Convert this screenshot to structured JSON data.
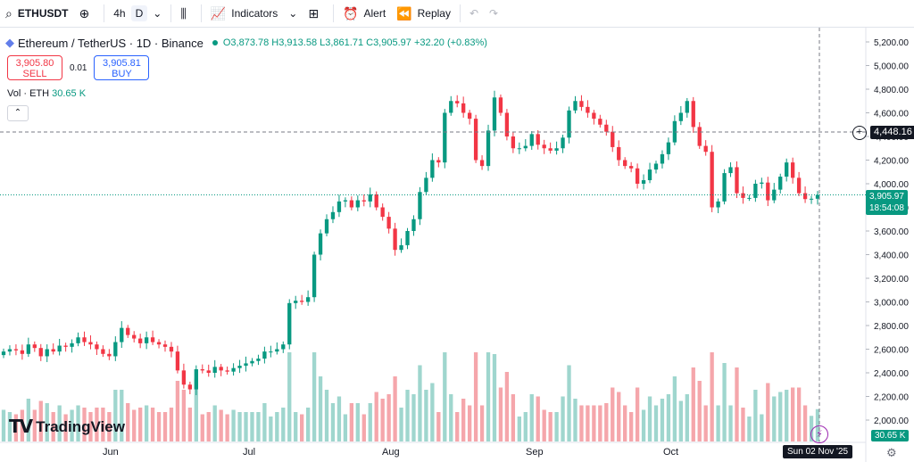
{
  "toolbar": {
    "symbol": "ETHUSDT",
    "interval_4h": "4h",
    "interval_d": "D",
    "indicators_label": "Indicators",
    "alert_label": "Alert",
    "replay_label": "Replay"
  },
  "legend": {
    "title": "Ethereum / TetherUS · 1D · Binance",
    "open": "O3,873.78",
    "high": "H3,913.58",
    "low": "L3,861.71",
    "close": "C3,905.97",
    "change": "+32.20 (+0.83%)"
  },
  "trade": {
    "sell_price": "3,905.80",
    "sell_label": "SELL",
    "spread": "0.01",
    "buy_price": "3,905.81",
    "buy_label": "BUY"
  },
  "volume": {
    "label": "Vol · ETH",
    "value": "30.65 K"
  },
  "logo": "TradingView",
  "crosshair": {
    "price": "4,448.16",
    "date": "Sun 02 Nov '25"
  },
  "last": {
    "price": "3,905.97",
    "countdown": "18:54:08",
    "volume_tag": "30.65 K"
  },
  "colors": {
    "up": "#089981",
    "down": "#f23645",
    "vol_up": "#9fd6ce",
    "vol_down": "#f5a6ab"
  },
  "chart_data": {
    "type": "candlestick",
    "title": "Ethereum / TetherUS · 1D · Binance",
    "x_labels": [
      "Jun",
      "Jul",
      "Aug",
      "Sep",
      "Oct"
    ],
    "y_ticks": [
      "5,200.00",
      "5,000.00",
      "4,800.00",
      "4,600.00",
      "4,400.00",
      "4,200.00",
      "4,000.00",
      "3,800.00",
      "3,600.00",
      "3,400.00",
      "3,200.00",
      "3,000.00",
      "2,800.00",
      "2,600.00",
      "2,400.00",
      "2,200.00",
      "2,000.00"
    ],
    "ylim": [
      1850,
      5300
    ],
    "close": [
      2580,
      2600,
      2590,
      2560,
      2640,
      2610,
      2540,
      2600,
      2580,
      2630,
      2620,
      2650,
      2700,
      2660,
      2640,
      2600,
      2560,
      2540,
      2660,
      2780,
      2720,
      2690,
      2650,
      2700,
      2660,
      2640,
      2620,
      2580,
      2420,
      2300,
      2260,
      2430,
      2420,
      2400,
      2450,
      2420,
      2410,
      2440,
      2460,
      2480,
      2500,
      2520,
      2580,
      2580,
      2600,
      2640,
      2990,
      3010,
      3000,
      3040,
      3400,
      3580,
      3700,
      3760,
      3850,
      3860,
      3800,
      3860,
      3850,
      3910,
      3800,
      3720,
      3620,
      3440,
      3480,
      3600,
      3700,
      3930,
      4050,
      4200,
      4180,
      4600,
      4700,
      4680,
      4600,
      4550,
      4200,
      4150,
      4450,
      4730,
      4600,
      4400,
      4300,
      4300,
      4320,
      4420,
      4330,
      4300,
      4280,
      4300,
      4390,
      4620,
      4700,
      4650,
      4600,
      4550,
      4500,
      4440,
      4310,
      4200,
      4150,
      4130,
      4000,
      4030,
      4120,
      4170,
      4250,
      4350,
      4530,
      4600,
      4700,
      4480,
      4320,
      4270,
      3800,
      3850,
      4090,
      4140,
      3920,
      3880,
      3880,
      4000,
      4010,
      3860,
      3950,
      4060,
      4180,
      4050,
      3920,
      3870,
      3873,
      3906
    ],
    "volume_tag": "30.65 K"
  }
}
